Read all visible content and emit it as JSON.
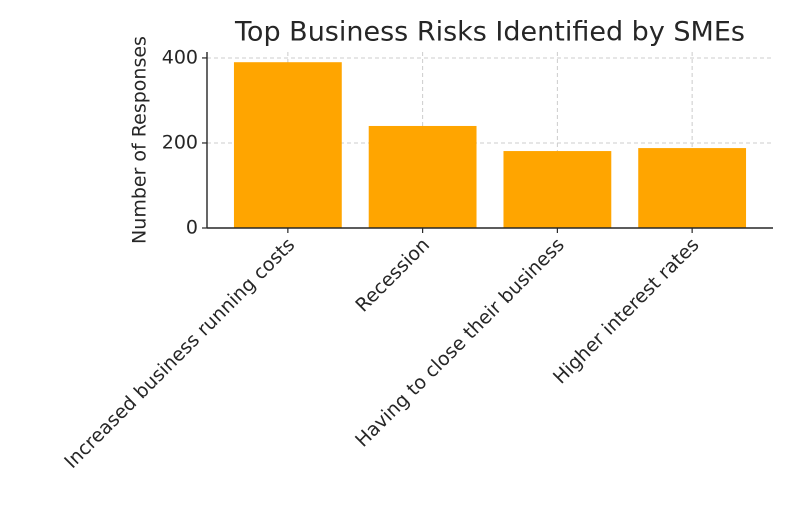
{
  "chart_data": {
    "type": "bar",
    "title": "Top Business Risks Identified by SMEs",
    "y_label": "Number of Responses",
    "categories": [
      "Increased business running costs",
      "Recession",
      "Having to close their business",
      "Higher interest rates"
    ],
    "values": [
      390,
      240,
      181,
      188
    ],
    "color": "#ffa500",
    "ylim": [
      0,
      414
    ],
    "yticks": [
      0,
      200,
      400
    ],
    "grid": true
  }
}
